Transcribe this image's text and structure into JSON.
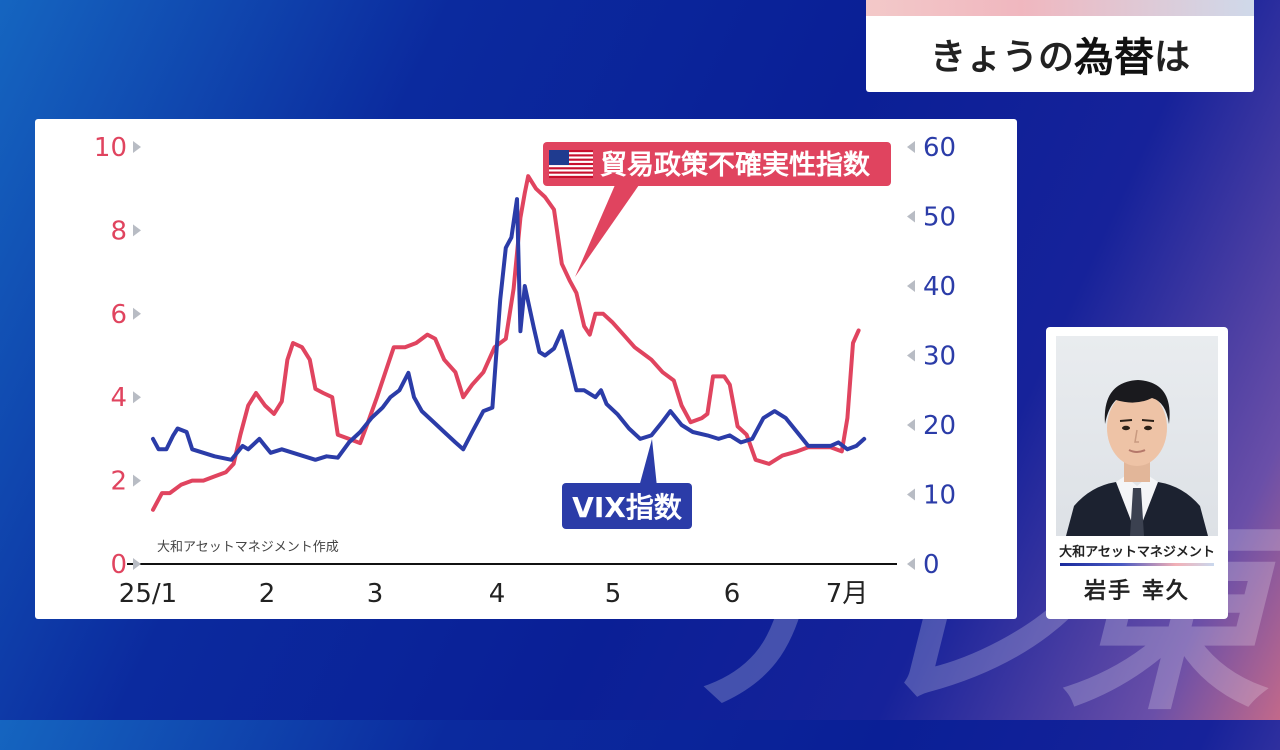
{
  "header": {
    "prefix": "きょうの",
    "main": "為替",
    "suffix": "は"
  },
  "watermark": "テレ東",
  "profile": {
    "org": "大和アセットマネジメント",
    "name": "岩手 幸久"
  },
  "chart_data": {
    "type": "line",
    "source_note": "大和アセットマネジメント作成",
    "x_ticks": [
      "25/1",
      "2",
      "3",
      "4",
      "5",
      "6",
      "7月"
    ],
    "y_left": {
      "ticks": [
        0,
        2,
        4,
        6,
        8,
        10
      ],
      "range": [
        0,
        10
      ],
      "color": "#e0445f"
    },
    "y_right": {
      "ticks": [
        0,
        10,
        20,
        30,
        40,
        50,
        60
      ],
      "range": [
        0,
        60
      ],
      "color": "#2b3ca8"
    },
    "grid": false,
    "series": [
      {
        "name": "貿易政策不確実性指数",
        "axis": "left",
        "color": "#e0445f",
        "flag": "us-flag-icon",
        "values": [
          [
            0.0,
            1.3
          ],
          [
            0.08,
            1.7
          ],
          [
            0.15,
            1.7
          ],
          [
            0.25,
            1.9
          ],
          [
            0.35,
            2.0
          ],
          [
            0.45,
            2.0
          ],
          [
            0.55,
            2.1
          ],
          [
            0.65,
            2.2
          ],
          [
            0.72,
            2.4
          ],
          [
            0.78,
            3.1
          ],
          [
            0.85,
            3.8
          ],
          [
            0.92,
            4.1
          ],
          [
            1.0,
            3.8
          ],
          [
            1.08,
            3.6
          ],
          [
            1.15,
            3.9
          ],
          [
            1.2,
            4.9
          ],
          [
            1.25,
            5.3
          ],
          [
            1.33,
            5.2
          ],
          [
            1.4,
            4.9
          ],
          [
            1.45,
            4.2
          ],
          [
            1.52,
            4.1
          ],
          [
            1.6,
            4.0
          ],
          [
            1.65,
            3.1
          ],
          [
            1.75,
            3.0
          ],
          [
            1.85,
            2.9
          ],
          [
            1.92,
            3.4
          ],
          [
            2.0,
            4.0
          ],
          [
            2.1,
            4.8
          ],
          [
            2.15,
            5.2
          ],
          [
            2.25,
            5.2
          ],
          [
            2.35,
            5.3
          ],
          [
            2.45,
            5.5
          ],
          [
            2.52,
            5.4
          ],
          [
            2.6,
            4.9
          ],
          [
            2.7,
            4.6
          ],
          [
            2.77,
            4.0
          ],
          [
            2.85,
            4.3
          ],
          [
            2.95,
            4.6
          ],
          [
            3.05,
            5.2
          ],
          [
            3.15,
            5.4
          ],
          [
            3.22,
            6.6
          ],
          [
            3.28,
            8.3
          ],
          [
            3.32,
            8.9
          ],
          [
            3.35,
            9.3
          ],
          [
            3.42,
            9.0
          ],
          [
            3.5,
            8.8
          ],
          [
            3.58,
            8.5
          ],
          [
            3.65,
            7.2
          ],
          [
            3.72,
            6.8
          ],
          [
            3.78,
            6.5
          ],
          [
            3.85,
            5.7
          ],
          [
            3.9,
            5.5
          ],
          [
            3.95,
            6.0
          ],
          [
            4.02,
            6.0
          ],
          [
            4.1,
            5.8
          ],
          [
            4.2,
            5.5
          ],
          [
            4.3,
            5.2
          ],
          [
            4.4,
            5.0
          ],
          [
            4.45,
            4.9
          ],
          [
            4.55,
            4.6
          ],
          [
            4.65,
            4.4
          ],
          [
            4.72,
            3.8
          ],
          [
            4.8,
            3.4
          ],
          [
            4.9,
            3.5
          ],
          [
            4.95,
            3.6
          ],
          [
            5.0,
            4.5
          ],
          [
            5.1,
            4.5
          ],
          [
            5.15,
            4.3
          ],
          [
            5.22,
            3.3
          ],
          [
            5.3,
            3.1
          ],
          [
            5.38,
            2.5
          ],
          [
            5.5,
            2.4
          ],
          [
            5.62,
            2.6
          ],
          [
            5.75,
            2.7
          ],
          [
            5.85,
            2.8
          ],
          [
            5.95,
            2.8
          ],
          [
            6.05,
            2.8
          ],
          [
            6.15,
            2.7
          ],
          [
            6.2,
            3.5
          ],
          [
            6.25,
            5.3
          ],
          [
            6.3,
            5.6
          ]
        ]
      },
      {
        "name": "VIX指数",
        "axis": "right",
        "color": "#2b3ca8",
        "values": [
          [
            0.0,
            18.0
          ],
          [
            0.05,
            16.5
          ],
          [
            0.12,
            16.5
          ],
          [
            0.18,
            18.5
          ],
          [
            0.22,
            19.5
          ],
          [
            0.3,
            19.0
          ],
          [
            0.35,
            16.5
          ],
          [
            0.45,
            16.0
          ],
          [
            0.55,
            15.5
          ],
          [
            0.7,
            15.0
          ],
          [
            0.8,
            17.0
          ],
          [
            0.85,
            16.5
          ],
          [
            0.95,
            18.0
          ],
          [
            1.0,
            17.0
          ],
          [
            1.05,
            16.0
          ],
          [
            1.15,
            16.5
          ],
          [
            1.25,
            16.0
          ],
          [
            1.35,
            15.5
          ],
          [
            1.45,
            15.0
          ],
          [
            1.55,
            15.5
          ],
          [
            1.65,
            15.3
          ],
          [
            1.75,
            17.5
          ],
          [
            1.85,
            19.0
          ],
          [
            1.95,
            21.0
          ],
          [
            2.05,
            22.5
          ],
          [
            2.12,
            24.0
          ],
          [
            2.2,
            25.0
          ],
          [
            2.28,
            27.5
          ],
          [
            2.33,
            24.0
          ],
          [
            2.4,
            22.0
          ],
          [
            2.5,
            20.5
          ],
          [
            2.6,
            19.0
          ],
          [
            2.7,
            17.5
          ],
          [
            2.77,
            16.5
          ],
          [
            2.85,
            19.0
          ],
          [
            2.95,
            22.0
          ],
          [
            3.03,
            22.5
          ],
          [
            3.1,
            38.0
          ],
          [
            3.15,
            45.5
          ],
          [
            3.2,
            47.0
          ],
          [
            3.25,
            52.5
          ],
          [
            3.28,
            33.5
          ],
          [
            3.32,
            40.0
          ],
          [
            3.4,
            34.0
          ],
          [
            3.45,
            30.5
          ],
          [
            3.5,
            30.0
          ],
          [
            3.58,
            31.0
          ],
          [
            3.65,
            33.5
          ],
          [
            3.72,
            29.0
          ],
          [
            3.78,
            25.0
          ],
          [
            3.85,
            25.0
          ],
          [
            3.95,
            24.0
          ],
          [
            4.0,
            25.0
          ],
          [
            4.05,
            23.0
          ],
          [
            4.15,
            21.5
          ],
          [
            4.25,
            19.5
          ],
          [
            4.35,
            18.0
          ],
          [
            4.45,
            18.5
          ],
          [
            4.55,
            20.5
          ],
          [
            4.62,
            22.0
          ],
          [
            4.72,
            20.0
          ],
          [
            4.82,
            19.0
          ],
          [
            4.95,
            18.5
          ],
          [
            5.05,
            18.0
          ],
          [
            5.15,
            18.5
          ],
          [
            5.25,
            17.5
          ],
          [
            5.35,
            18.0
          ],
          [
            5.45,
            21.0
          ],
          [
            5.55,
            22.0
          ],
          [
            5.65,
            21.0
          ],
          [
            5.75,
            19.0
          ],
          [
            5.85,
            17.0
          ],
          [
            5.95,
            17.0
          ],
          [
            6.05,
            17.0
          ],
          [
            6.12,
            17.5
          ],
          [
            6.2,
            16.5
          ],
          [
            6.28,
            17.0
          ],
          [
            6.35,
            18.0
          ]
        ]
      }
    ]
  }
}
